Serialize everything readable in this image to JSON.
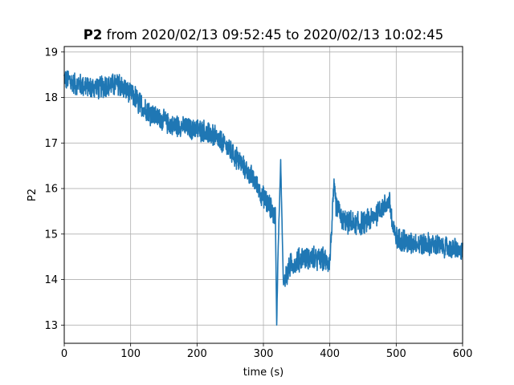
{
  "chart_data": {
    "type": "line",
    "title": {
      "variable": "P2",
      "rest": " from 2020/02/13 09:52:45 to 2020/02/13 10:02:45"
    },
    "xlabel": "time (s)",
    "ylabel": "P2",
    "xlim": [
      0,
      600
    ],
    "ylim": [
      12.6,
      19.12
    ],
    "grid": true,
    "xticks": [
      0,
      100,
      200,
      300,
      400,
      500,
      600
    ],
    "yticks": [
      13,
      14,
      15,
      16,
      17,
      18,
      19
    ],
    "line_color": "#1f77b4",
    "series": [
      {
        "x": [
          0,
          20,
          40,
          60,
          80,
          100,
          120,
          140,
          160,
          180,
          200,
          220,
          240,
          260,
          280,
          300,
          310,
          318,
          320,
          322,
          326,
          330,
          340,
          360,
          380,
          400,
          406,
          410,
          420,
          440,
          460,
          480,
          490,
          495,
          500,
          520,
          540,
          560,
          580,
          600
        ],
        "y": [
          18.4,
          18.3,
          18.2,
          18.25,
          18.3,
          18.1,
          17.75,
          17.55,
          17.4,
          17.35,
          17.3,
          17.2,
          17.0,
          16.65,
          16.3,
          15.8,
          15.6,
          15.4,
          13.0,
          14.6,
          16.6,
          13.9,
          14.3,
          14.5,
          14.45,
          14.4,
          16.0,
          15.6,
          15.3,
          15.2,
          15.3,
          15.6,
          15.7,
          15.1,
          14.9,
          14.8,
          14.8,
          14.75,
          14.7,
          14.6
        ]
      }
    ]
  }
}
